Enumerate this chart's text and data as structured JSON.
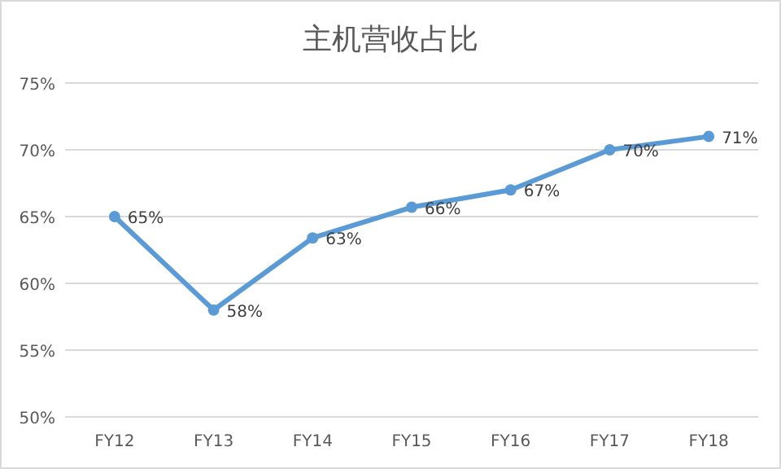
{
  "chart_data": {
    "type": "line",
    "title": "主机营收占比",
    "categories": [
      "FY12",
      "FY13",
      "FY14",
      "FY15",
      "FY16",
      "FY17",
      "FY18"
    ],
    "series": [
      {
        "color": "#5b9bd5",
        "values": [
          65,
          58,
          63.4,
          65.7,
          67,
          70,
          71
        ],
        "value_labels": [
          "65%",
          "58%",
          "63%",
          "66%",
          "67%",
          "70%",
          "71%"
        ]
      }
    ],
    "ylim": [
      50,
      75
    ],
    "yticks": [
      {
        "value": 50,
        "label": "50%"
      },
      {
        "value": 55,
        "label": "55%"
      },
      {
        "value": 60,
        "label": "60%"
      },
      {
        "value": 65,
        "label": "65%"
      },
      {
        "value": 70,
        "label": "70%"
      },
      {
        "value": 75,
        "label": "75%"
      }
    ],
    "grid": "y",
    "marker": "circle",
    "line_style": "solid"
  }
}
